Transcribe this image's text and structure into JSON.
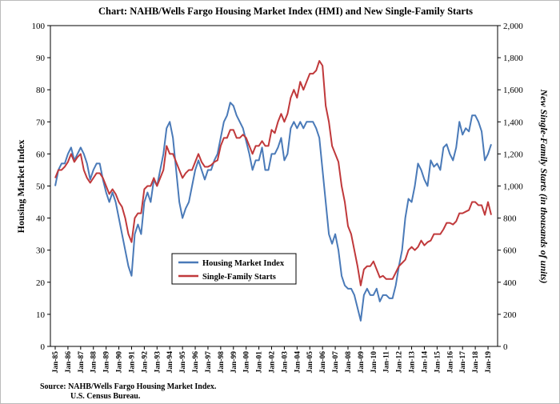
{
  "chart_data": {
    "type": "line",
    "title": "Chart:  NAHB/Wells Fargo Housing Market Index (HMI) and New Single-Family Starts",
    "y_label": "Housing Market Index",
    "y2_label": "New Single-Family Starts (in thousands of units)",
    "source": [
      "Source: NAHB/Wells Fargo Housing Market Index.",
      "U.S. Census Bureau."
    ],
    "categories": [
      "Jan-85",
      null,
      null,
      null,
      "Jan-86",
      null,
      null,
      null,
      "Jan-87",
      null,
      null,
      null,
      "Jan-88",
      null,
      null,
      null,
      "Jan-89",
      null,
      null,
      null,
      "Jan-90",
      null,
      null,
      null,
      "Jan-91",
      null,
      null,
      null,
      "Jan-92",
      null,
      null,
      null,
      "Jan-93",
      null,
      null,
      null,
      "Jan-94",
      null,
      null,
      null,
      "Jan-95",
      null,
      null,
      null,
      "Jan-96",
      null,
      null,
      null,
      "Jan-97",
      null,
      null,
      null,
      "Jan-98",
      null,
      null,
      null,
      "Jan-99",
      null,
      null,
      null,
      "Jan-00",
      null,
      null,
      null,
      "Jan-01",
      null,
      null,
      null,
      "Jan-02",
      null,
      null,
      null,
      "Jan-03",
      null,
      null,
      null,
      "Jan-04",
      null,
      null,
      null,
      "Jan-05",
      null,
      null,
      null,
      "Jan-06",
      null,
      null,
      null,
      "Jan-07",
      null,
      null,
      null,
      "Jan-08",
      null,
      null,
      null,
      "Jan-09",
      null,
      null,
      null,
      "Jan-10",
      null,
      null,
      null,
      "Jan-11",
      null,
      null,
      null,
      "Jan-12",
      null,
      null,
      null,
      "Jan-13",
      null,
      null,
      null,
      "Jan-14",
      null,
      null,
      null,
      "Jan-15",
      null,
      null,
      null,
      "Jan-16",
      null,
      null,
      null,
      "Jan-17",
      null,
      null,
      null,
      "Jan-18",
      null,
      null,
      null,
      "Jan-19",
      null
    ],
    "series": [
      {
        "name": "Housing Market Index",
        "color": "#4a7ab8",
        "axis": "y",
        "values": [
          50,
          55,
          57,
          57,
          60,
          62,
          58,
          60,
          62,
          60,
          57,
          52,
          55,
          57,
          57,
          52,
          48,
          45,
          48,
          45,
          40,
          35,
          30,
          25,
          22,
          35,
          38,
          35,
          45,
          48,
          45,
          52,
          50,
          55,
          60,
          68,
          70,
          65,
          55,
          45,
          40,
          43,
          45,
          50,
          55,
          58,
          55,
          52,
          55,
          55,
          58,
          60,
          65,
          70,
          72,
          76,
          75,
          72,
          70,
          68,
          64,
          60,
          55,
          58,
          58,
          62,
          55,
          55,
          60,
          60,
          62,
          65,
          58,
          60,
          68,
          70,
          68,
          70,
          68,
          70,
          70,
          70,
          68,
          65,
          55,
          45,
          35,
          32,
          35,
          30,
          22,
          19,
          18,
          18,
          16,
          12,
          8,
          16,
          18,
          16,
          16,
          18,
          14,
          16,
          16,
          15,
          15,
          19,
          25,
          30,
          40,
          46,
          45,
          50,
          57,
          55,
          52,
          50,
          58,
          56,
          57,
          55,
          62,
          63,
          60,
          58,
          62,
          70,
          66,
          68,
          67,
          72,
          72,
          70,
          67,
          58,
          60,
          63
        ]
      },
      {
        "name": "Single-Family Starts",
        "color": "#c0393b",
        "axis": "y2",
        "values": [
          1050,
          1100,
          1100,
          1120,
          1150,
          1200,
          1150,
          1180,
          1200,
          1100,
          1050,
          1020,
          1050,
          1080,
          1080,
          1050,
          1000,
          950,
          980,
          950,
          900,
          870,
          800,
          700,
          650,
          800,
          830,
          830,
          980,
          1000,
          1000,
          1050,
          1000,
          1050,
          1100,
          1250,
          1200,
          1200,
          1150,
          1100,
          1050,
          1080,
          1100,
          1100,
          1150,
          1200,
          1150,
          1120,
          1120,
          1130,
          1150,
          1160,
          1250,
          1300,
          1300,
          1350,
          1350,
          1300,
          1300,
          1320,
          1300,
          1250,
          1200,
          1250,
          1250,
          1280,
          1250,
          1250,
          1350,
          1330,
          1400,
          1450,
          1400,
          1450,
          1550,
          1600,
          1550,
          1650,
          1600,
          1650,
          1700,
          1700,
          1720,
          1780,
          1750,
          1500,
          1400,
          1250,
          1200,
          1150,
          1000,
          900,
          750,
          700,
          600,
          500,
          380,
          480,
          500,
          500,
          530,
          480,
          430,
          440,
          420,
          420,
          420,
          460,
          500,
          520,
          540,
          600,
          620,
          600,
          620,
          660,
          630,
          650,
          660,
          700,
          700,
          700,
          730,
          770,
          770,
          760,
          780,
          830,
          830,
          840,
          850,
          900,
          900,
          880,
          880,
          820,
          900,
          820
        ]
      }
    ],
    "ylim": [
      0,
      100
    ],
    "yticks": [
      0,
      10,
      20,
      30,
      40,
      50,
      60,
      70,
      80,
      90,
      100
    ],
    "y2lim": [
      0,
      2000
    ],
    "y2ticks": [
      0,
      200,
      400,
      600,
      800,
      {
        "value": 1000,
        "label": "1,000"
      },
      {
        "value": 1200,
        "label": "1,200"
      },
      {
        "value": 1400,
        "label": "1,400"
      },
      {
        "value": 1600,
        "label": "1,600"
      },
      {
        "value": 1800,
        "label": "1,800"
      },
      {
        "value": 2000,
        "label": "2,000"
      }
    ],
    "grid": false
  }
}
